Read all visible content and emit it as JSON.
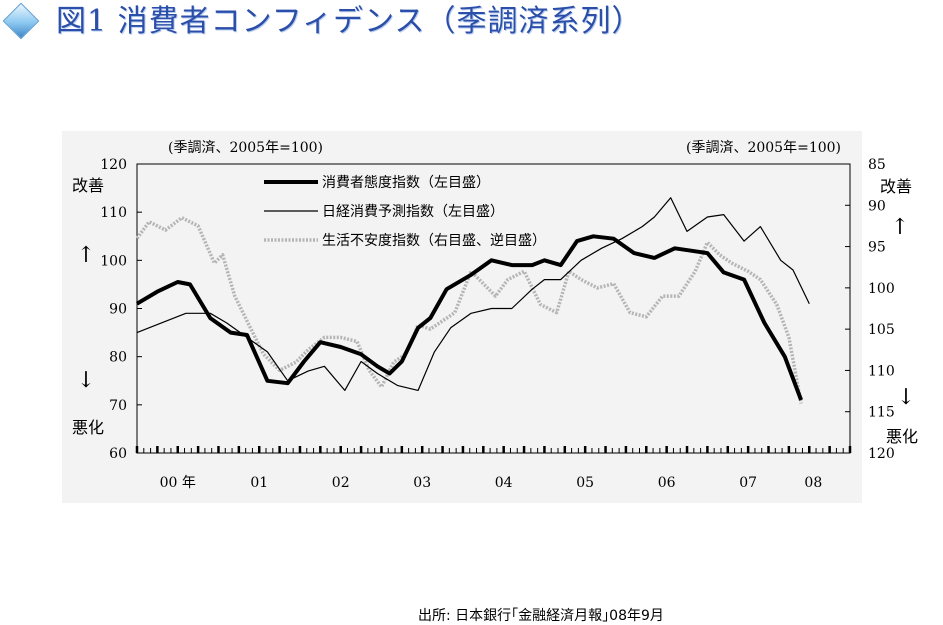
{
  "page": {
    "title": "図1 消費者コンフィデンス（季調済系列）",
    "source": "出所: 日本銀行｢金融経済月報｣08年9月"
  },
  "chart_data": {
    "type": "line",
    "left_unit": "(季調済、2005年=100)",
    "right_unit": "(季調済、2005年=100)",
    "left_axis": {
      "min": 60,
      "max": 120,
      "ticks": [
        60,
        70,
        80,
        90,
        100,
        110,
        120
      ]
    },
    "right_axis": {
      "min": 85,
      "max": 120,
      "ticks": [
        85,
        90,
        95,
        100,
        105,
        110,
        115,
        120
      ],
      "reversed": true
    },
    "left_top_label": "改善",
    "left_bottom_label": "悪化",
    "right_top_label": "改善",
    "right_bottom_label": "悪化",
    "up_arrow": "↑",
    "down_arrow": "↓",
    "x_axis": {
      "min": 2000.0,
      "max": 2008.75
    },
    "x_tick_labels": [
      {
        "x": 2000.5,
        "label": "00 年"
      },
      {
        "x": 2001.5,
        "label": "01"
      },
      {
        "x": 2002.5,
        "label": "02"
      },
      {
        "x": 2003.5,
        "label": "03"
      },
      {
        "x": 2004.5,
        "label": "04"
      },
      {
        "x": 2005.5,
        "label": "05"
      },
      {
        "x": 2006.5,
        "label": "06"
      },
      {
        "x": 2007.5,
        "label": "07"
      },
      {
        "x": 2008.3,
        "label": "08"
      }
    ],
    "series": [
      {
        "name": "消費者態度指数（左目盛）",
        "axis": "left",
        "color": "#000000",
        "style": "thick",
        "x": [
          2000.0,
          2000.25,
          2000.5,
          2000.65,
          2000.9,
          2001.15,
          2001.35,
          2001.6,
          2001.85,
          2002.05,
          2002.25,
          2002.5,
          2002.75,
          2002.95,
          2003.1,
          2003.25,
          2003.45,
          2003.6,
          2003.8,
          2004.1,
          2004.35,
          2004.6,
          2004.85,
          2005.0,
          2005.2,
          2005.4,
          2005.6,
          2005.85,
          2006.1,
          2006.35,
          2006.6,
          2006.8,
          2007.0,
          2007.2,
          2007.45,
          2007.7,
          2007.95,
          2008.15
        ],
        "y": [
          91,
          93.5,
          95.5,
          95,
          88,
          85,
          84.5,
          75,
          74.5,
          79,
          83,
          82,
          80.5,
          78,
          76.5,
          79,
          86,
          88,
          94,
          97,
          100,
          99,
          99,
          100,
          99,
          104,
          105,
          104.5,
          101.5,
          100.5,
          102.5,
          102,
          101.5,
          97.5,
          96,
          87,
          80,
          71
        ]
      },
      {
        "name": "日経消費予測指数（左目盛）",
        "axis": "left",
        "color": "#000000",
        "style": "thin",
        "x": [
          2000.0,
          2000.3,
          2000.6,
          2000.9,
          2001.1,
          2001.35,
          2001.6,
          2001.85,
          2002.1,
          2002.3,
          2002.55,
          2002.75,
          2002.95,
          2003.2,
          2003.45,
          2003.65,
          2003.85,
          2004.1,
          2004.35,
          2004.6,
          2004.85,
          2005.0,
          2005.2,
          2005.45,
          2005.7,
          2005.95,
          2006.2,
          2006.35,
          2006.55,
          2006.75,
          2007.0,
          2007.2,
          2007.45,
          2007.65,
          2007.9,
          2008.05,
          2008.25
        ],
        "y": [
          85,
          87,
          89,
          89,
          87,
          84,
          81,
          75,
          77,
          78,
          73,
          79,
          76.5,
          74,
          73,
          81,
          86,
          89,
          90,
          90,
          94,
          96,
          96,
          100,
          102.5,
          104.5,
          107,
          109,
          113,
          106,
          109,
          109.5,
          104,
          107,
          100,
          98,
          91
        ]
      },
      {
        "name": "生活不安度指数（右目盛、逆目盛）",
        "axis": "right",
        "color": "#b5b5b5",
        "style": "dotted",
        "x": [
          2000.0,
          2000.15,
          2000.35,
          2000.55,
          2000.75,
          2000.95,
          2001.05,
          2001.2,
          2001.35,
          2001.55,
          2001.75,
          2001.95,
          2002.1,
          2002.3,
          2002.5,
          2002.7,
          2002.85,
          2003.0,
          2003.15,
          2003.3,
          2003.45,
          2003.6,
          2003.75,
          2003.9,
          2004.1,
          2004.25,
          2004.4,
          2004.55,
          2004.75,
          2004.95,
          2005.15,
          2005.3,
          2005.45,
          2005.65,
          2005.85,
          2006.05,
          2006.25,
          2006.45,
          2006.65,
          2006.85,
          2007.0,
          2007.15,
          2007.3,
          2007.5,
          2007.65,
          2007.85,
          2008.0,
          2008.15
        ],
        "y": [
          94,
          92,
          93,
          91.5,
          92.5,
          97,
          96,
          101,
          104,
          108,
          110,
          109,
          107.5,
          106,
          106,
          106.5,
          110,
          112,
          109,
          108,
          104.5,
          105,
          104,
          103,
          98,
          99.5,
          101,
          99,
          98,
          102,
          103,
          98,
          99,
          100,
          99.5,
          103,
          103.5,
          101,
          101,
          98,
          94.5,
          96,
          97,
          98,
          99,
          102,
          106,
          114
        ]
      }
    ]
  }
}
